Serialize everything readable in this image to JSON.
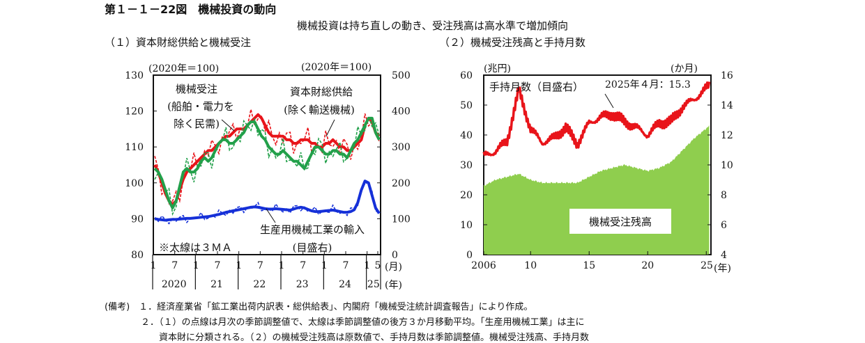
{
  "figure": {
    "title": "第１－１－22図　機械投資の動向",
    "subtitle": "機械投資は持ち直しの動き、受注残高は高水準で増加傾向"
  },
  "panel1": {
    "title": "（１）資本財総供給と機械受注",
    "left_unit": "(2020年＝100)",
    "right_unit": "(2020年＝100)",
    "label_machinery_orders": [
      "機械受注",
      "(船舶・電力を",
      "除く民需)"
    ],
    "label_capital_goods": [
      "資本財総供給",
      "(除く輸送機械)"
    ],
    "label_imports": [
      "生産用機械工業の輸入",
      "(目盛右)"
    ],
    "note_3ma": "※太線は３ＭＡ",
    "month_unit": "(月)",
    "year_unit": "(年)"
  },
  "panel2": {
    "title": "（２）機械受注残高と手持月数",
    "left_unit": "(兆円)",
    "right_unit": "(か月)",
    "label_months": "手持月数（目盛右）",
    "annotation": "2025年４月：15.3",
    "label_backlog": "機械受注残高",
    "year_unit": "(年)"
  },
  "notes": [
    "(備考)　１．経済産業省「鉱工業出荷内訳表・総供給表」、内閣府「機械受注統計調査報告」により作成。",
    "　　　　２．（１）の点線は月次の季節調整値で、太線は季節調整値の後方３か月移動平均。「生産用機械工業」は主に",
    "　　　　　　資本財に分類される。（２）の機械受注残高は原数値で、手持月数は季節調整値。機械受注残高、手持月数"
  ],
  "chart_data": [
    {
      "type": "line",
      "title": "（１）資本財総供給と機械受注",
      "x_ticks_month": [
        "1",
        "7",
        "1",
        "7",
        "1",
        "7",
        "1",
        "7",
        "1",
        "7",
        "1",
        "5"
      ],
      "x_ticks_year": [
        "2020",
        "21",
        "22",
        "23",
        "24",
        "25"
      ],
      "y_left": {
        "ticks": [
          80,
          90,
          100,
          110,
          120,
          130
        ],
        "ylim": [
          80,
          130
        ]
      },
      "y_right": {
        "ticks": [
          0,
          100,
          200,
          300,
          400,
          500
        ],
        "ylim": [
          0,
          500
        ]
      },
      "x_start": "2020-01",
      "series": [
        {
          "name": "資本財総供給",
          "color": "#e8141a",
          "axis": "left",
          "style": "3MA",
          "values": [
            105,
            103,
            100,
            97,
            95,
            94,
            95,
            98,
            101,
            103,
            104,
            105,
            106,
            107,
            108,
            109,
            109,
            110,
            111,
            112,
            113,
            113,
            114,
            115,
            115,
            115,
            116,
            117,
            118,
            119,
            118,
            116,
            114,
            113,
            113,
            113,
            113,
            112,
            112,
            111,
            111,
            112,
            112,
            112,
            111,
            111,
            110,
            110,
            111,
            111,
            112,
            111,
            110,
            110,
            109,
            109,
            110,
            111,
            112,
            116,
            118,
            117,
            114,
            113
          ]
        },
        {
          "name": "機械受注",
          "color": "#22a04a",
          "axis": "left",
          "style": "3MA",
          "values": [
            104,
            103,
            101,
            98,
            95,
            93,
            95,
            99,
            103,
            104,
            103,
            103,
            104,
            106,
            107,
            106,
            107,
            109,
            111,
            112,
            112,
            111,
            111,
            112,
            113,
            114,
            116,
            117,
            117,
            115,
            113,
            112,
            110,
            109,
            108,
            108,
            109,
            108,
            107,
            106,
            106,
            105,
            104,
            106,
            108,
            110,
            110,
            109,
            108,
            108,
            109,
            109,
            108,
            108,
            107,
            109,
            111,
            112,
            114,
            116,
            118,
            118,
            114,
            112
          ]
        },
        {
          "name": "生産用機械工業の輸入",
          "color": "#1530d8",
          "axis": "right",
          "style": "3MA",
          "values": [
            100,
            98,
            97,
            96,
            97,
            98,
            98,
            99,
            100,
            101,
            101,
            102,
            103,
            104,
            105,
            106,
            108,
            110,
            112,
            115,
            118,
            120,
            122,
            124,
            126,
            128,
            130,
            132,
            133,
            132,
            130,
            128,
            127,
            127,
            128,
            127,
            126,
            125,
            124,
            127,
            130,
            132,
            130,
            126,
            122,
            120,
            120,
            121,
            122,
            123,
            124,
            122,
            120,
            118,
            118,
            120,
            125,
            145,
            180,
            205,
            200,
            165,
            130,
            115
          ]
        }
      ]
    },
    {
      "type": "area",
      "title": "（２）機械受注残高と手持月数",
      "x_ticks": [
        "2006",
        "10",
        "15",
        "20",
        "25"
      ],
      "y_left": {
        "ticks": [
          0,
          10,
          20,
          30,
          40,
          50,
          60
        ],
        "ylim": [
          0,
          60
        ]
      },
      "y_right": {
        "ticks": [
          4,
          6,
          8,
          10,
          12,
          14,
          16
        ],
        "ylim": [
          4,
          16
        ]
      },
      "x": [
        2006,
        2007,
        2008,
        2009,
        2010,
        2011,
        2012,
        2013,
        2014,
        2015,
        2016,
        2017,
        2018,
        2019,
        2020,
        2021,
        2022,
        2023,
        2024,
        2025.25
      ],
      "series": [
        {
          "name": "機械受注残高",
          "color": "#8fce4e",
          "axis": "left",
          "type": "area",
          "values": [
            23,
            25,
            26,
            27,
            25,
            24,
            24,
            24,
            24,
            26,
            28,
            29,
            30,
            29,
            28,
            29,
            31,
            35,
            39,
            43
          ]
        },
        {
          "name": "手持月数",
          "color": "#e8141a",
          "axis": "right",
          "type": "line",
          "values": [
            10.6,
            10.9,
            11.6,
            15.0,
            12.4,
            11.5,
            11.8,
            12.5,
            11.4,
            12.8,
            13.2,
            13.4,
            12.9,
            12.5,
            12.0,
            12.8,
            12.9,
            13.9,
            14.4,
            15.3
          ]
        }
      ]
    }
  ]
}
